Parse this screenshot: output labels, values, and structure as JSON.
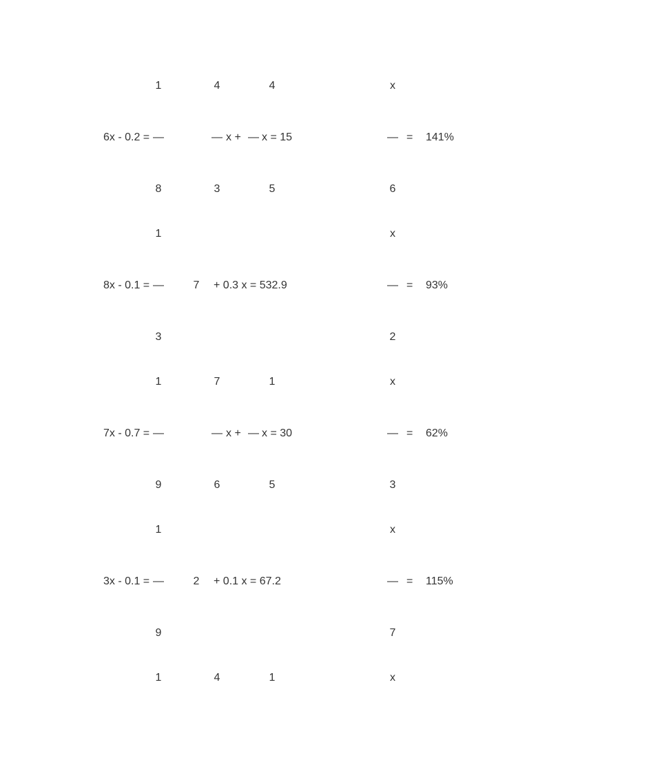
{
  "bg": "#ffffff",
  "text_color": "#333333",
  "font_size": 16,
  "blocks": [
    {
      "topA": "1",
      "topB": "4",
      "topC": "4",
      "topD": "x",
      "leftExpr": "6x - 0.2 =",
      "midType": "fractions",
      "midXeq": "x = 15",
      "pct": "141%",
      "botA": "8",
      "botB": "3",
      "botC": "5",
      "botD": "6"
    },
    {
      "topA": "1",
      "topB": "",
      "topC": "",
      "topD": "x",
      "leftExpr": "8x - 0.1 =",
      "midType": "plain",
      "plainNum": "7",
      "plainRest": "+   0.3 x = 532.9",
      "pct": "93%",
      "botA": "3",
      "botB": "",
      "botC": "",
      "botD": "2"
    },
    {
      "topA": "1",
      "topB": "7",
      "topC": "1",
      "topD": "x",
      "leftExpr": "7x - 0.7 =",
      "midType": "fractions",
      "midXeq": "x = 30",
      "pct": "62%",
      "botA": "9",
      "botB": "6",
      "botC": "5",
      "botD": "3"
    },
    {
      "topA": "1",
      "topB": "",
      "topC": "",
      "topD": "x",
      "leftExpr": "3x - 0.1 =",
      "midType": "plain",
      "plainNum": "2",
      "plainRest": "+   0.1 x = 67.2",
      "pct": "115%",
      "botA": "9",
      "botB": "",
      "botC": "",
      "botD": "7"
    },
    {
      "topA": "1",
      "topB": "4",
      "topC": "1",
      "topD": "x",
      "partial": true
    }
  ]
}
